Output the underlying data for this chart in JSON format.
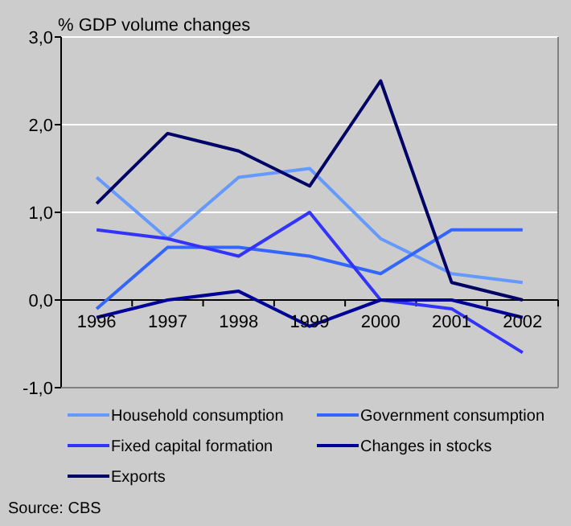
{
  "chart_data": {
    "type": "line",
    "title": "%  GDP volume changes",
    "categories": [
      "1996",
      "1997",
      "1998",
      "1999",
      "2000",
      "2001",
      "2002"
    ],
    "series": [
      {
        "name": "Household consumption",
        "color": "#6699ff",
        "values": [
          1.4,
          0.7,
          1.4,
          1.5,
          0.7,
          0.3,
          0.2
        ]
      },
      {
        "name": "Government consumption",
        "color": "#3366ff",
        "values": [
          -0.1,
          0.6,
          0.6,
          0.5,
          0.3,
          0.8,
          0.8
        ]
      },
      {
        "name": "Fixed capital formation",
        "color": "#3333ff",
        "values": [
          0.8,
          0.7,
          0.5,
          1.0,
          0.0,
          -0.1,
          -0.6
        ]
      },
      {
        "name": "Changes in stocks",
        "color": "#000099",
        "values": [
          -0.2,
          0.0,
          0.1,
          -0.3,
          0.0,
          0.0,
          -0.2
        ]
      },
      {
        "name": "Exports",
        "color": "#000066",
        "values": [
          1.1,
          1.9,
          1.7,
          1.3,
          2.5,
          0.2,
          0.0
        ]
      }
    ],
    "ylim": [
      -1,
      3
    ],
    "yticks": [
      {
        "value": -1,
        "label": "-1,0"
      },
      {
        "value": 0,
        "label": "0,0"
      },
      {
        "value": 1,
        "label": "1,0"
      },
      {
        "value": 2,
        "label": "2,0"
      },
      {
        "value": 3,
        "label": "3,0"
      }
    ],
    "grid": "y",
    "legend": "bottom",
    "marker": "none",
    "line_style": "solid",
    "annotations": [
      "Source: CBS"
    ]
  }
}
